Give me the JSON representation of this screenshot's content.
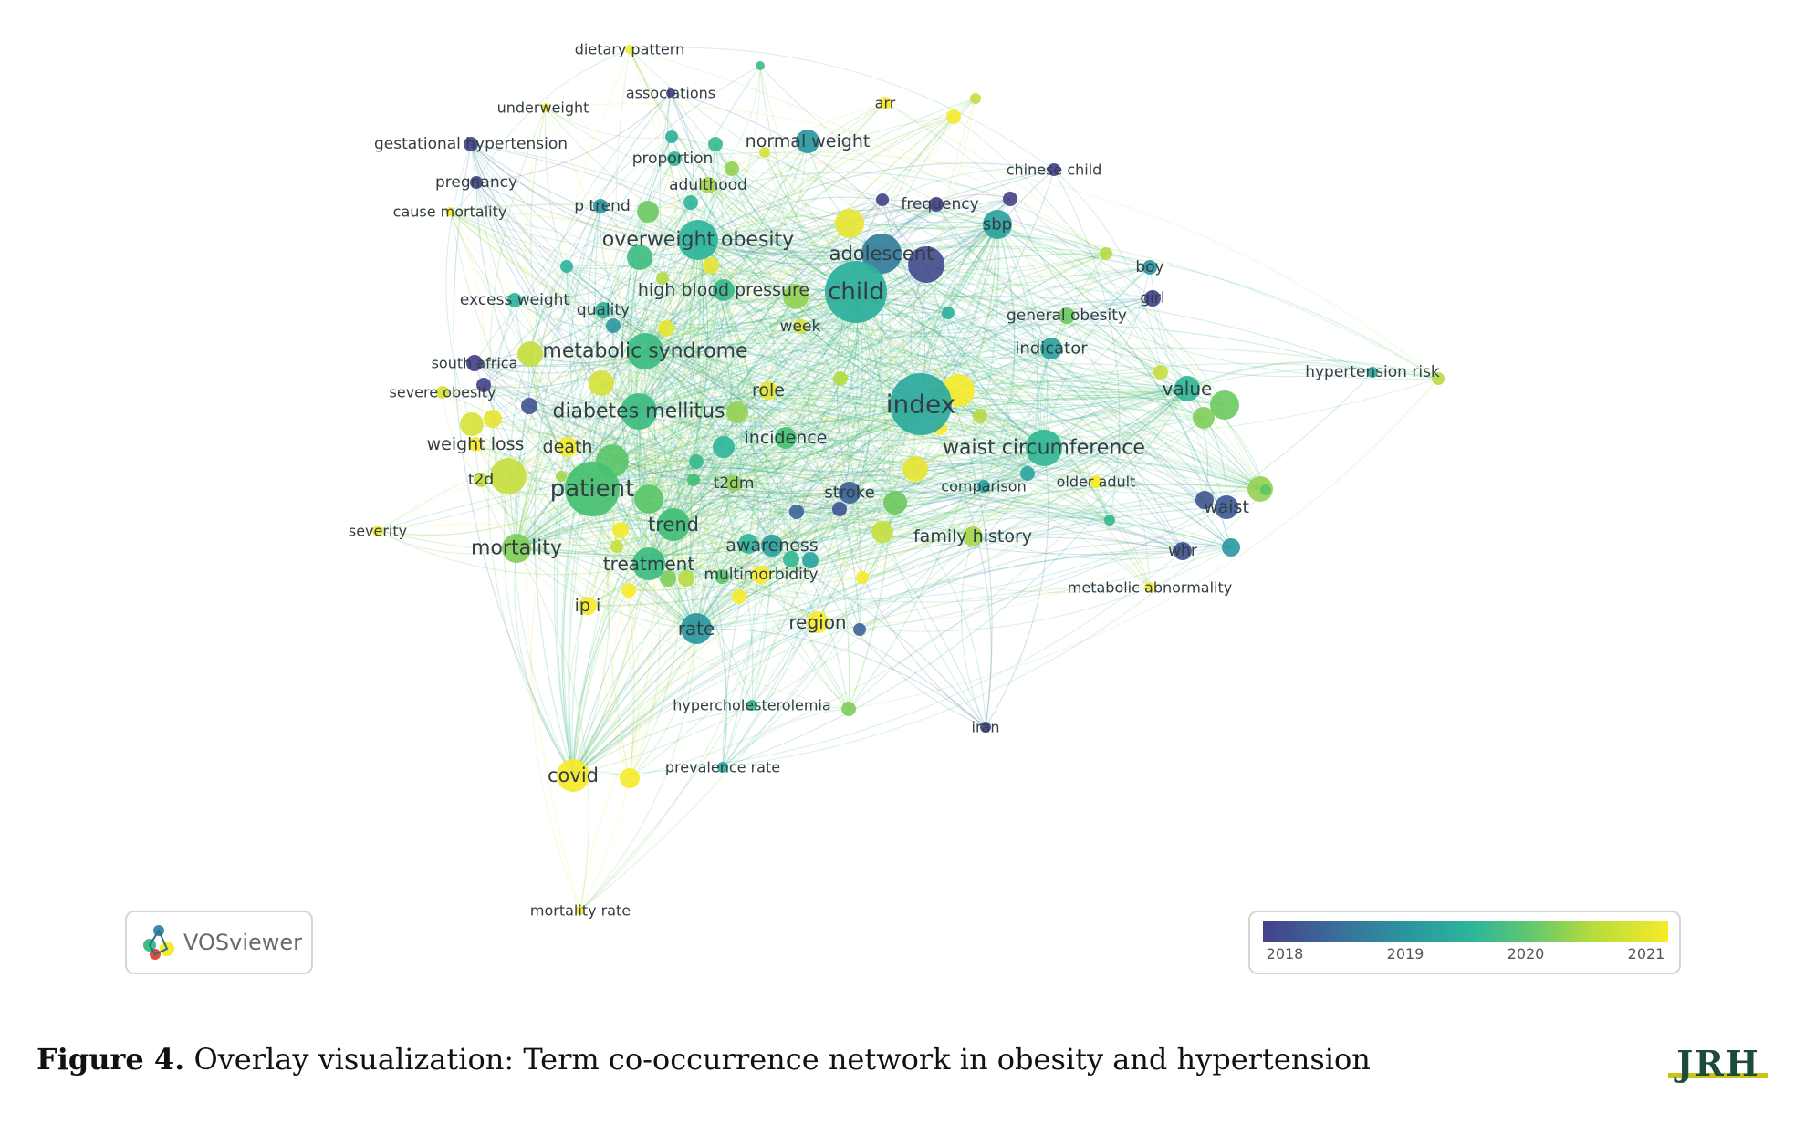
{
  "colors": {
    "c2018": "#44418a",
    "c2019": "#3a8ba8",
    "c2020": "#3ebc82",
    "c2021": "#f6ea2a",
    "c2019_5": "#2db59a",
    "c2020_5": "#a6d64a"
  },
  "nodes": [
    {
      "id": "dietary-pattern",
      "label": "dietary pattern",
      "year": 2021
    },
    {
      "id": "associations",
      "label": "associations",
      "year": 2018
    },
    {
      "id": "underweight",
      "label": "underweight",
      "year": 2021
    },
    {
      "id": "arr",
      "label": "arr",
      "year": 2021
    },
    {
      "id": "gestational-hypertension",
      "label": "gestational hypertension",
      "year": 2018
    },
    {
      "id": "normal-weight",
      "label": "normal weight",
      "year": 2019
    },
    {
      "id": "proportion",
      "label": "proportion",
      "year": 2019.6
    },
    {
      "id": "chinese-child",
      "label": "chinese child",
      "year": 2018
    },
    {
      "id": "pregnancy",
      "label": "pregnancy",
      "year": 2018
    },
    {
      "id": "adulthood",
      "label": "adulthood",
      "year": 2020.5
    },
    {
      "id": "frequency",
      "label": "frequency",
      "year": 2018
    },
    {
      "id": "cause-mortality",
      "label": "cause mortality",
      "year": 2021
    },
    {
      "id": "p-trend",
      "label": "p trend",
      "year": 2019
    },
    {
      "id": "sbp",
      "label": "sbp",
      "year": 2019.2
    },
    {
      "id": "overweight-obesity",
      "label": "overweight obesity",
      "year": 2019.5
    },
    {
      "id": "adolescent",
      "label": "adolescent",
      "year": 2018.7
    },
    {
      "id": "boy",
      "label": "boy",
      "year": 2019
    },
    {
      "id": "child",
      "label": "child",
      "year": 2019.4
    },
    {
      "id": "high-blood-pressure",
      "label": "high blood pressure",
      "year": 2019.7
    },
    {
      "id": "excess-weight",
      "label": "excess weight",
      "year": 2019.5
    },
    {
      "id": "girl",
      "label": "girl",
      "year": 2018
    },
    {
      "id": "quality",
      "label": "quality",
      "year": 2019.5
    },
    {
      "id": "general-obesity",
      "label": "general obesity",
      "year": 2020.2
    },
    {
      "id": "week",
      "label": "week",
      "year": 2020.8
    },
    {
      "id": "indicator",
      "label": "indicator",
      "year": 2019.2
    },
    {
      "id": "metabolic-syndrome",
      "label": "metabolic syndrome",
      "year": 2019.8
    },
    {
      "id": "south-africa",
      "label": "south africa",
      "year": 2018
    },
    {
      "id": "hypertension-risk",
      "label": "hypertension risk",
      "year": 2019.3
    },
    {
      "id": "severe-obesity",
      "label": "severe obesity",
      "year": 2020.8
    },
    {
      "id": "value",
      "label": "value",
      "year": 2019.6
    },
    {
      "id": "role",
      "label": "role",
      "year": 2020.9
    },
    {
      "id": "index",
      "label": "index",
      "year": 2019.3
    },
    {
      "id": "diabetes-mellitus",
      "label": "diabetes mellitus",
      "year": 2019.8
    },
    {
      "id": "incidence",
      "label": "incidence",
      "year": 2020
    },
    {
      "id": "weight-loss",
      "label": "weight loss",
      "year": 2021
    },
    {
      "id": "death",
      "label": "death",
      "year": 2021
    },
    {
      "id": "waist-circumference",
      "label": "waist circumference",
      "year": 2019.6
    },
    {
      "id": "t2d",
      "label": "t2d",
      "year": 2020.7
    },
    {
      "id": "comparison",
      "label": "comparison",
      "year": 2019.2
    },
    {
      "id": "older-adult",
      "label": "older adult",
      "year": 2021
    },
    {
      "id": "patient",
      "label": "patient",
      "year": 2020
    },
    {
      "id": "t2dm",
      "label": "t2dm",
      "year": 2020.4
    },
    {
      "id": "stroke",
      "label": "stroke",
      "year": 2018.4
    },
    {
      "id": "waist",
      "label": "waist",
      "year": 2018.3
    },
    {
      "id": "trend",
      "label": "trend",
      "year": 2019.9
    },
    {
      "id": "severity",
      "label": "severity",
      "year": 2021
    },
    {
      "id": "family-history",
      "label": "family history",
      "year": 2020.5
    },
    {
      "id": "mortality",
      "label": "mortality",
      "year": 2020.3
    },
    {
      "id": "awareness",
      "label": "awareness",
      "year": 2019.2
    },
    {
      "id": "whr",
      "label": "whr",
      "year": 2018.2
    },
    {
      "id": "treatment",
      "label": "treatment",
      "year": 2019.8
    },
    {
      "id": "multimorbidity",
      "label": "multimorbidity",
      "year": 2021
    },
    {
      "id": "metabolic-abnormality",
      "label": "metabolic abnormality",
      "year": 2021
    },
    {
      "id": "ip-i",
      "label": "ip i",
      "year": 2021
    },
    {
      "id": "rate",
      "label": "rate",
      "year": 2019
    },
    {
      "id": "region",
      "label": "region",
      "year": 2021
    },
    {
      "id": "hypercholesterolemia",
      "label": "hypercholesterolemia",
      "year": 2019.7
    },
    {
      "id": "iran",
      "label": "iran",
      "year": 2018
    },
    {
      "id": "covid",
      "label": "covid",
      "year": 2021
    },
    {
      "id": "prevalence-rate",
      "label": "prevalence rate",
      "year": 2019.3
    },
    {
      "id": "mortality-rate",
      "label": "mortality rate",
      "year": 2021
    }
  ],
  "legend": {
    "ticks": [
      "2018",
      "2019",
      "2020",
      "2021"
    ]
  },
  "vosviewer": {
    "text": "VOSviewer"
  },
  "caption": {
    "label": "Figure 4.",
    "text": " Overlay visualization: Term co-occurrence network in obesity and hypertension"
  },
  "logo": {
    "text": "JRH"
  }
}
